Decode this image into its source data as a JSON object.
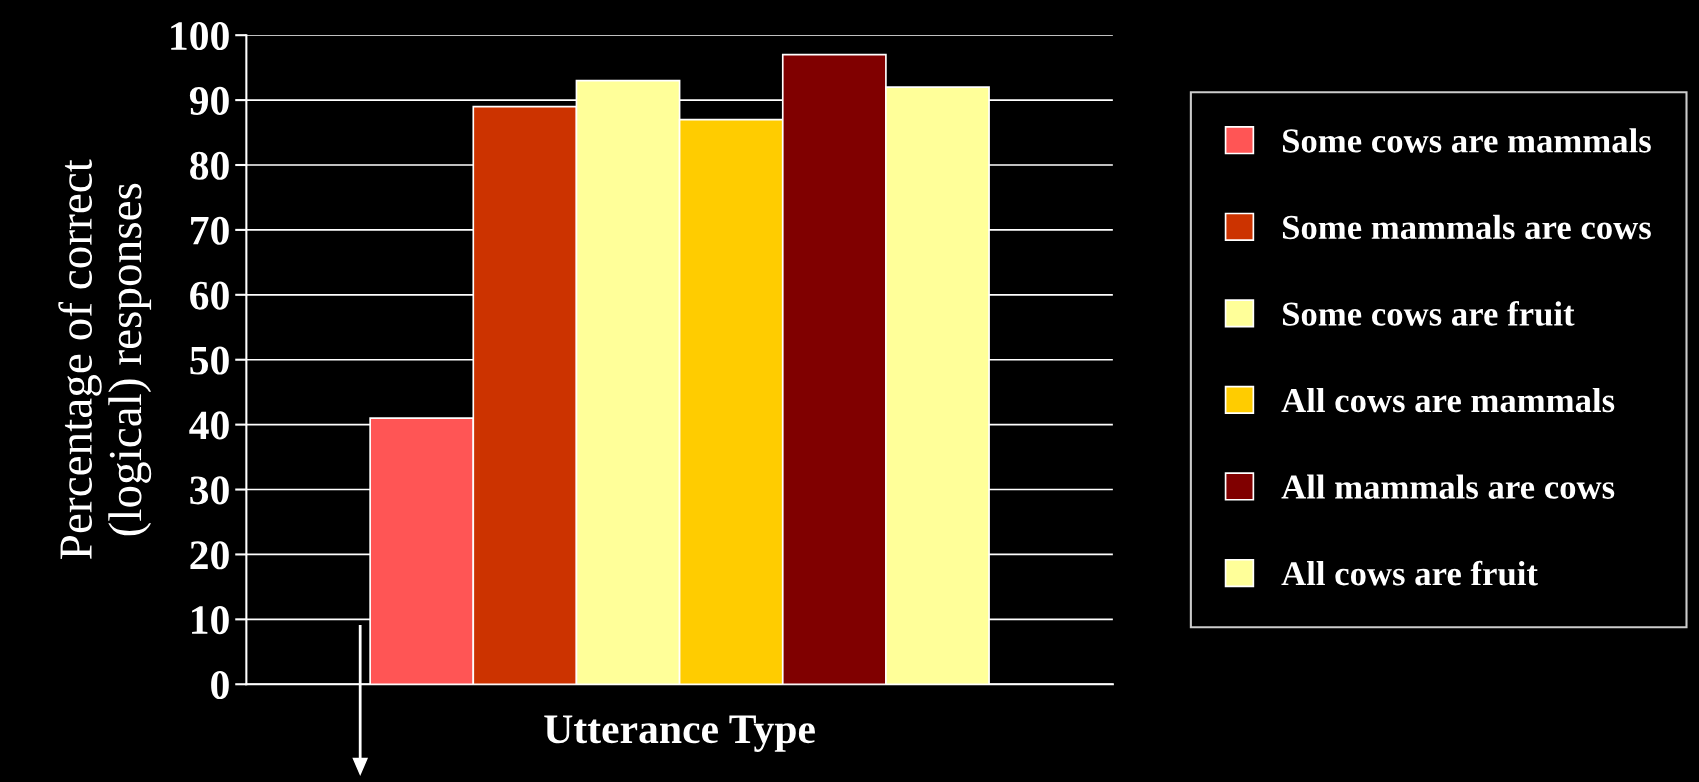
{
  "chart_data": {
    "type": "bar",
    "xlabel": "Utterance Type",
    "ylabel": "Percentage of correct\n(logical) responses",
    "categories": [
      null
    ],
    "series": [
      {
        "name": "Some cows are mammals",
        "color": "#ff5555",
        "values": [
          41
        ]
      },
      {
        "name": "Some mammals are cows",
        "color": "#cc3300",
        "values": [
          89
        ]
      },
      {
        "name": "Some cows are fruit",
        "color": "#ffff99",
        "values": [
          93
        ]
      },
      {
        "name": "All cows are mammals",
        "color": "#ffcc00",
        "values": [
          87
        ]
      },
      {
        "name": "All mammals are cows",
        "color": "#800000",
        "values": [
          97
        ]
      },
      {
        "name": "All cows are fruit",
        "color": "#ffff99",
        "values": [
          92
        ]
      }
    ],
    "ylim": [
      0,
      100
    ],
    "yticks": [
      0,
      10,
      20,
      30,
      40,
      50,
      60,
      70,
      80,
      90,
      100
    ],
    "grid": "y",
    "legend": "right"
  }
}
